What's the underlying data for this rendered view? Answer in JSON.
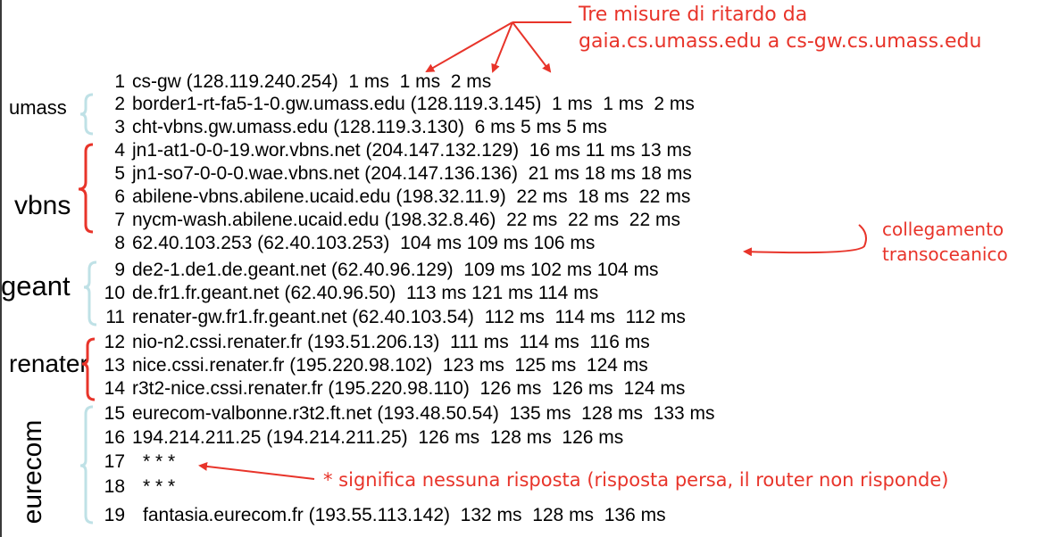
{
  "hops": [
    {
      "n": "1",
      "text": "cs-gw (128.119.240.254)  1 ms  1 ms  2 ms"
    },
    {
      "n": "2",
      "text": "border1-rt-fa5-1-0.gw.umass.edu (128.119.3.145)  1 ms  1 ms  2 ms"
    },
    {
      "n": "3",
      "text": "cht-vbns.gw.umass.edu (128.119.3.130)  6 ms 5 ms 5 ms"
    },
    {
      "n": "4",
      "text": "jn1-at1-0-0-19.wor.vbns.net (204.147.132.129)  16 ms 11 ms 13 ms"
    },
    {
      "n": "5",
      "text": "jn1-so7-0-0-0.wae.vbns.net (204.147.136.136)  21 ms 18 ms 18 ms"
    },
    {
      "n": "6",
      "text": "abilene-vbns.abilene.ucaid.edu (198.32.11.9)  22 ms  18 ms  22 ms"
    },
    {
      "n": "7",
      "text": "nycm-wash.abilene.ucaid.edu (198.32.8.46)  22 ms  22 ms  22 ms"
    },
    {
      "n": "8",
      "text": "62.40.103.253 (62.40.103.253)  104 ms 109 ms 106 ms"
    },
    {
      "n": "9",
      "text": "de2-1.de1.de.geant.net (62.40.96.129)  109 ms 102 ms 104 ms"
    },
    {
      "n": "10",
      "text": "de.fr1.fr.geant.net (62.40.96.50)  113 ms 121 ms 114 ms"
    },
    {
      "n": "11",
      "text": "renater-gw.fr1.fr.geant.net (62.40.103.54)  112 ms  114 ms  112 ms"
    },
    {
      "n": "12",
      "text": "nio-n2.cssi.renater.fr (193.51.206.13)  111 ms  114 ms  116 ms"
    },
    {
      "n": "13",
      "text": "nice.cssi.renater.fr (195.220.98.102)  123 ms  125 ms  124 ms"
    },
    {
      "n": "14",
      "text": "r3t2-nice.cssi.renater.fr (195.220.98.110)  126 ms  126 ms  124 ms"
    },
    {
      "n": "15",
      "text": "eurecom-valbonne.r3t2.ft.net (193.48.50.54)  135 ms  128 ms  133 ms"
    },
    {
      "n": "16",
      "text": "194.214.211.25 (194.214.211.25)  126 ms  128 ms  126 ms"
    },
    {
      "n": "17",
      "text": "* * *"
    },
    {
      "n": "18",
      "text": "* * *"
    },
    {
      "n": "19",
      "text": "fantasia.eurecom.fr (193.55.113.142)  132 ms  128 ms  136 ms"
    }
  ],
  "groups": {
    "umass": "umass",
    "vbns": "vbns",
    "geant": "geant",
    "renater": "renater",
    "eurecom": "eurecom"
  },
  "annotations": {
    "delay_line1": "Tre misure di ritardo da",
    "delay_line2": "gaia.cs.umass.edu a cs-gw.cs.umass.edu",
    "transoceanic_line1": "collegamento",
    "transoceanic_line2": "transoceanico",
    "no_response": "* significa nessuna risposta (risposta persa, il router non risponde)"
  },
  "colors": {
    "annotation": "#e8342a",
    "bracket_light": "#bfe1e6",
    "bracket_red": "#e8342a",
    "text": "#000000"
  }
}
